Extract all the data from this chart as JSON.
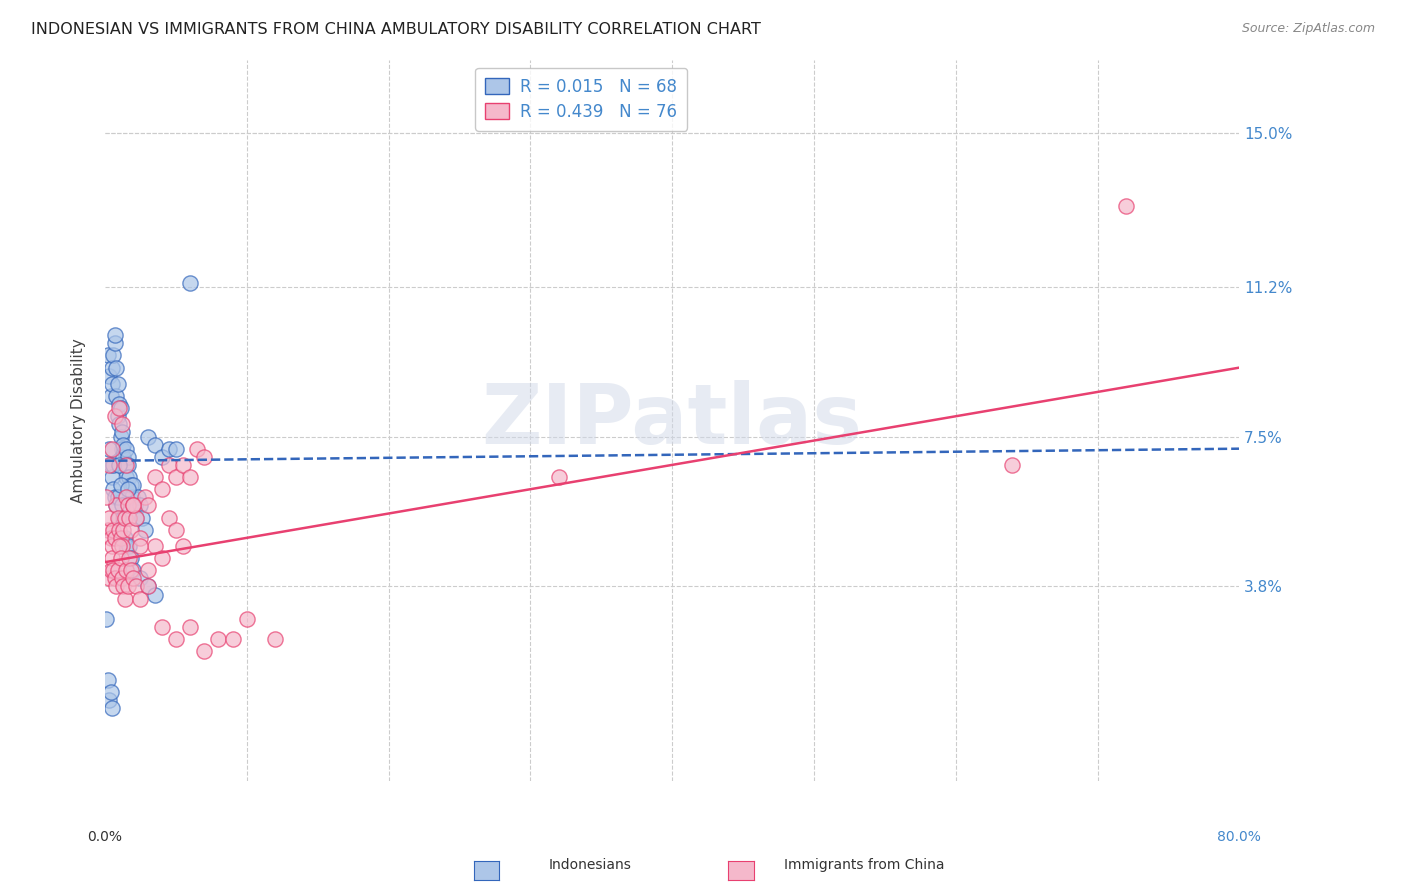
{
  "title": "INDONESIAN VS IMMIGRANTS FROM CHINA AMBULATORY DISABILITY CORRELATION CHART",
  "source": "Source: ZipAtlas.com",
  "ylabel": "Ambulatory Disability",
  "yticks": [
    "15.0%",
    "11.2%",
    "7.5%",
    "3.8%"
  ],
  "ytick_vals": [
    0.15,
    0.112,
    0.075,
    0.038
  ],
  "xlim": [
    0.0,
    0.8
  ],
  "ylim": [
    -0.01,
    0.168
  ],
  "indonesian_R": "0.015",
  "indonesian_N": "68",
  "china_R": "0.439",
  "china_N": "76",
  "indonesian_color": "#adc6e8",
  "china_color": "#f5b8cb",
  "indonesian_line_color": "#3366bb",
  "china_line_color": "#e84070",
  "legend_label_1": "Indonesians",
  "legend_label_2": "Immigrants from China",
  "watermark": "ZIPatlas",
  "indonesian_line_y0": 0.069,
  "indonesian_line_y1": 0.072,
  "china_line_y0": 0.044,
  "china_line_y1": 0.092,
  "indonesian_x": [
    0.002,
    0.003,
    0.004,
    0.005,
    0.005,
    0.006,
    0.007,
    0.007,
    0.008,
    0.008,
    0.009,
    0.009,
    0.01,
    0.01,
    0.011,
    0.011,
    0.012,
    0.012,
    0.013,
    0.013,
    0.014,
    0.015,
    0.015,
    0.016,
    0.016,
    0.017,
    0.018,
    0.019,
    0.02,
    0.021,
    0.022,
    0.023,
    0.025,
    0.026,
    0.028,
    0.03,
    0.035,
    0.04,
    0.045,
    0.05,
    0.003,
    0.004,
    0.005,
    0.006,
    0.006,
    0.007,
    0.008,
    0.009,
    0.01,
    0.01,
    0.011,
    0.012,
    0.013,
    0.014,
    0.015,
    0.016,
    0.017,
    0.018,
    0.02,
    0.025,
    0.03,
    0.035,
    0.001,
    0.002,
    0.003,
    0.004,
    0.005,
    0.06
  ],
  "indonesian_y": [
    0.095,
    0.09,
    0.085,
    0.088,
    0.092,
    0.095,
    0.098,
    0.1,
    0.092,
    0.085,
    0.08,
    0.088,
    0.083,
    0.078,
    0.075,
    0.082,
    0.076,
    0.072,
    0.07,
    0.073,
    0.068,
    0.072,
    0.065,
    0.07,
    0.068,
    0.065,
    0.063,
    0.06,
    0.063,
    0.058,
    0.055,
    0.06,
    0.058,
    0.055,
    0.052,
    0.075,
    0.073,
    0.07,
    0.072,
    0.072,
    0.072,
    0.068,
    0.065,
    0.068,
    0.062,
    0.06,
    0.058,
    0.06,
    0.055,
    0.068,
    0.063,
    0.058,
    0.055,
    0.05,
    0.048,
    0.062,
    0.048,
    0.045,
    0.042,
    0.04,
    0.038,
    0.036,
    0.03,
    0.015,
    0.01,
    0.012,
    0.008,
    0.113
  ],
  "china_x": [
    0.002,
    0.003,
    0.004,
    0.005,
    0.006,
    0.007,
    0.008,
    0.009,
    0.01,
    0.011,
    0.012,
    0.013,
    0.014,
    0.015,
    0.016,
    0.017,
    0.018,
    0.02,
    0.022,
    0.025,
    0.028,
    0.03,
    0.035,
    0.04,
    0.045,
    0.05,
    0.055,
    0.06,
    0.065,
    0.07,
    0.003,
    0.004,
    0.005,
    0.006,
    0.007,
    0.008,
    0.009,
    0.01,
    0.011,
    0.012,
    0.013,
    0.014,
    0.015,
    0.016,
    0.017,
    0.018,
    0.02,
    0.022,
    0.025,
    0.03,
    0.035,
    0.04,
    0.045,
    0.05,
    0.055,
    0.003,
    0.005,
    0.007,
    0.01,
    0.012,
    0.015,
    0.02,
    0.025,
    0.03,
    0.04,
    0.05,
    0.06,
    0.07,
    0.08,
    0.09,
    0.1,
    0.12,
    0.001,
    0.32,
    0.64,
    0.72
  ],
  "china_y": [
    0.052,
    0.055,
    0.05,
    0.048,
    0.052,
    0.05,
    0.058,
    0.055,
    0.052,
    0.05,
    0.048,
    0.052,
    0.055,
    0.06,
    0.058,
    0.055,
    0.052,
    0.058,
    0.055,
    0.05,
    0.06,
    0.058,
    0.065,
    0.062,
    0.068,
    0.065,
    0.068,
    0.065,
    0.072,
    0.07,
    0.04,
    0.042,
    0.045,
    0.042,
    0.04,
    0.038,
    0.042,
    0.048,
    0.045,
    0.04,
    0.038,
    0.035,
    0.042,
    0.038,
    0.045,
    0.042,
    0.04,
    0.038,
    0.035,
    0.042,
    0.048,
    0.045,
    0.055,
    0.052,
    0.048,
    0.068,
    0.072,
    0.08,
    0.082,
    0.078,
    0.068,
    0.058,
    0.048,
    0.038,
    0.028,
    0.025,
    0.028,
    0.022,
    0.025,
    0.025,
    0.03,
    0.025,
    0.06,
    0.065,
    0.068,
    0.132
  ]
}
